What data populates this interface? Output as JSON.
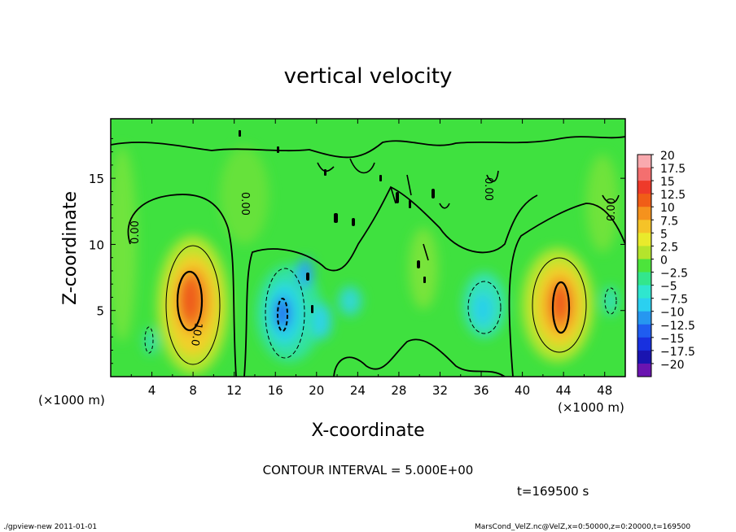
{
  "chart_data": {
    "type": "heatmap",
    "title": "vertical velocity",
    "xlabel": "X-coordinate",
    "ylabel": "Z-coordinate",
    "x_unit_left": "(×1000 m)",
    "x_unit_right": "(×1000 m)",
    "xlim": [
      0,
      50
    ],
    "ylim": [
      0,
      19.5
    ],
    "x_ticks": [
      "4",
      "8",
      "12",
      "16",
      "20",
      "24",
      "28",
      "32",
      "36",
      "40",
      "44",
      "48"
    ],
    "y_ticks": [
      "5",
      "10",
      "15"
    ],
    "colorbar_labels": [
      "20",
      "17.5",
      "15",
      "12.5",
      "10",
      "7.5",
      "5",
      "2.5",
      "0",
      "−2.5",
      "−5",
      "−7.5",
      "−10",
      "−12.5",
      "−15",
      "−17.5",
      "−20"
    ],
    "colorbar_colors": [
      "#f9a9ae",
      "#f46f6f",
      "#ee3a2a",
      "#f05d17",
      "#f5921d",
      "#f5c328",
      "#e9ea2c",
      "#b4e42c",
      "#4ce43b",
      "#33e68c",
      "#2fe6cf",
      "#2bd0f0",
      "#2697f0",
      "#1f5df0",
      "#1830df",
      "#1a14b0",
      "#6a14b0"
    ],
    "contour_labels": [
      "0.00",
      "0.00",
      "0.00",
      "0.00",
      "0.00",
      "10.0"
    ],
    "features": [
      {
        "name": "updraft",
        "x": 7,
        "z": 5,
        "max": 12.5
      },
      {
        "name": "downdraft",
        "x": 17,
        "z": 5,
        "min": -10
      },
      {
        "name": "downdraft",
        "x": 36,
        "z": 5.5,
        "min": -7.5
      },
      {
        "name": "updraft",
        "x": 43.5,
        "z": 5.5,
        "max": 12.5
      }
    ]
  },
  "contour_interval": "CONTOUR INTERVAL = 5.000E+00",
  "time_label": "t=169500 s",
  "footer_left": "./gpview-new   2011-01-01",
  "footer_right": "MarsCond_VelZ.nc@VelZ,x=0:50000,z=0:20000,t=169500"
}
